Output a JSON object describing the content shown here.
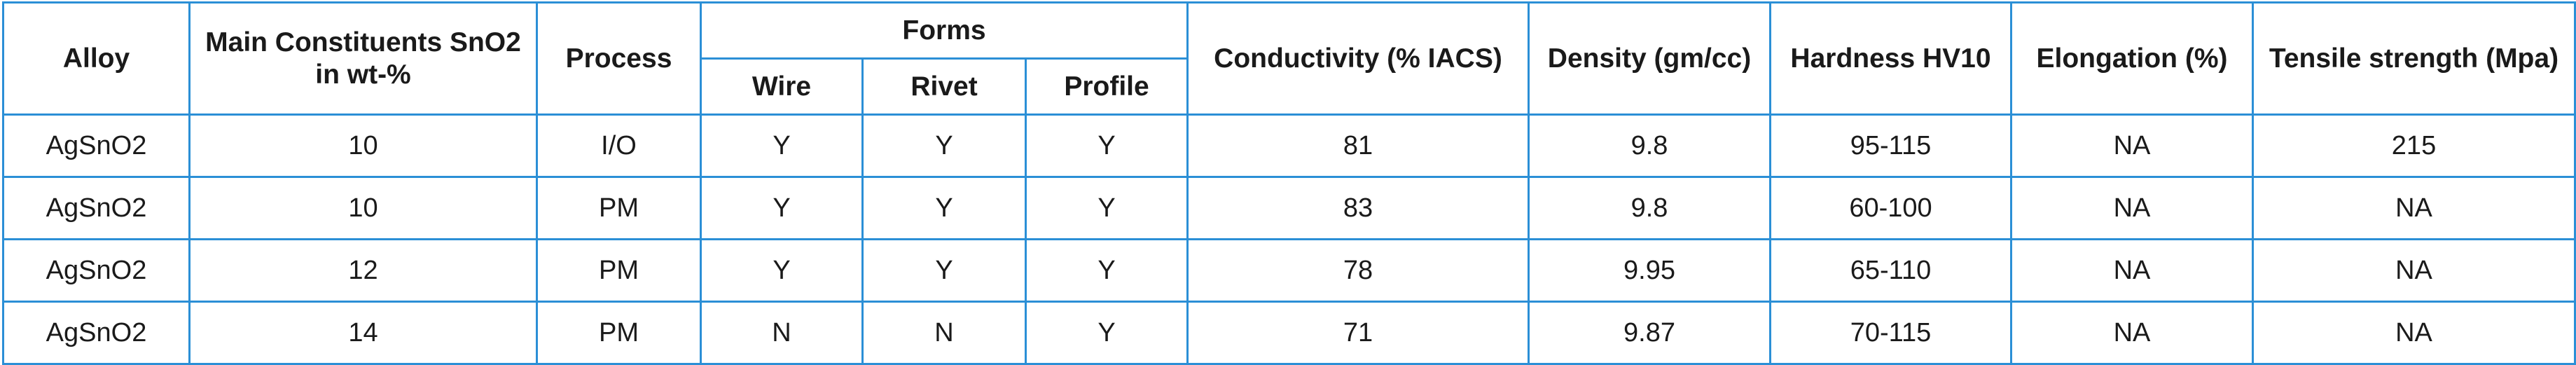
{
  "columns": {
    "alloy": "Alloy",
    "main_constituents": "Main Constituents SnO2 in wt-%",
    "process": "Process",
    "forms": "Forms",
    "wire": "Wire",
    "rivet": "Rivet",
    "profile": "Profile",
    "conductivity": "Conductivity (% IACS)",
    "density": "Density (gm/cc)",
    "hardness": "Hardness HV10",
    "elongation": "Elongation (%)",
    "tensile": "Tensile strength (Mpa)"
  },
  "rows": [
    {
      "alloy": "AgSnO2",
      "constituents": "10",
      "process": "I/O",
      "wire": "Y",
      "rivet": "Y",
      "profile": "Y",
      "conductivity": "81",
      "density": "9.8",
      "hardness": "95-115",
      "elongation": "NA",
      "tensile": "215"
    },
    {
      "alloy": "AgSnO2",
      "constituents": "10",
      "process": "PM",
      "wire": "Y",
      "rivet": "Y",
      "profile": "Y",
      "conductivity": "83",
      "density": "9.8",
      "hardness": "60-100",
      "elongation": "NA",
      "tensile": "NA"
    },
    {
      "alloy": "AgSnO2",
      "constituents": "12",
      "process": "PM",
      "wire": "Y",
      "rivet": "Y",
      "profile": "Y",
      "conductivity": "78",
      "density": "9.95",
      "hardness": "65-110",
      "elongation": "NA",
      "tensile": "NA"
    },
    {
      "alloy": "AgSnO2",
      "constituents": "14",
      "process": "PM",
      "wire": "N",
      "rivet": "N",
      "profile": "Y",
      "conductivity": "71",
      "density": "9.87",
      "hardness": "70-115",
      "elongation": "NA",
      "tensile": "NA"
    }
  ],
  "colors": {
    "border": "#2b8fd6",
    "text": "#1a1a1a",
    "background": "#ffffff"
  }
}
